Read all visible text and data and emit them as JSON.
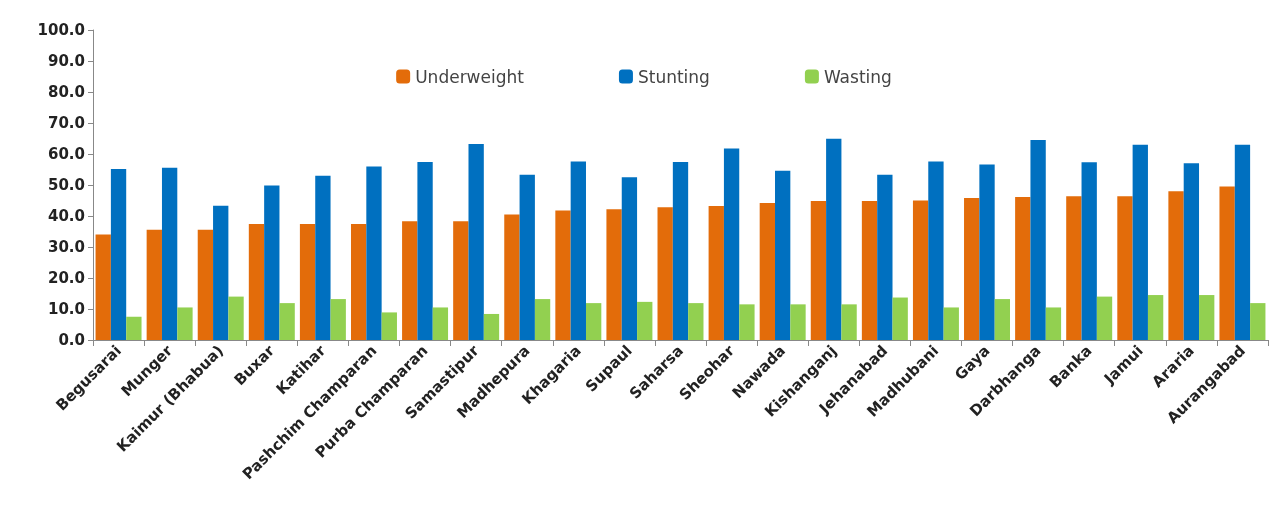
{
  "chart_data": {
    "type": "bar",
    "categories": [
      "Begusarai",
      "Munger",
      "Kaimur (Bhabua)",
      "Buxar",
      "Katihar",
      "Pashchim Champaran",
      "Purba Champaran",
      "Samastipur",
      "Madhepura",
      "Khagaria",
      "Supaul",
      "Saharsa",
      "Sheohar",
      "Nawada",
      "Kishanganj",
      "Jehanabad",
      "Madhubani",
      "Gaya",
      "Darbhanga",
      "Banka",
      "Jamui",
      "Araria",
      "Aurangabad"
    ],
    "series": [
      {
        "name": "Underweight",
        "color": "#e36c0a",
        "values": [
          34.0,
          35.6,
          35.6,
          37.4,
          37.4,
          37.4,
          38.3,
          38.3,
          40.5,
          41.8,
          42.2,
          42.8,
          43.2,
          44.2,
          44.8,
          44.8,
          45.0,
          45.8,
          46.1,
          46.4,
          46.4,
          48.0,
          49.5
        ]
      },
      {
        "name": "Stunting",
        "color": "#0070c0",
        "values": [
          55.2,
          55.6,
          43.3,
          49.8,
          53.0,
          56.0,
          57.4,
          63.2,
          53.3,
          57.6,
          52.5,
          57.4,
          61.8,
          54.6,
          64.9,
          53.3,
          57.6,
          56.6,
          64.5,
          57.3,
          63.0,
          57.0,
          63.0
        ]
      },
      {
        "name": "Wasting",
        "color": "#92d050",
        "values": [
          7.5,
          10.5,
          14.0,
          11.9,
          13.2,
          8.9,
          10.5,
          8.4,
          13.2,
          11.9,
          12.3,
          11.9,
          11.5,
          11.5,
          11.5,
          13.7,
          10.5,
          13.2,
          10.5,
          14.0,
          14.5,
          14.5,
          11.9
        ]
      }
    ],
    "ylim": [
      0,
      100
    ],
    "yticks": [
      {
        "value": 0,
        "label": "0.0"
      },
      {
        "value": 10,
        "label": "10.0"
      },
      {
        "value": 20,
        "label": "20.0"
      },
      {
        "value": 30,
        "label": "30.0"
      },
      {
        "value": 40,
        "label": "40.0"
      },
      {
        "value": 50,
        "label": "50.0"
      },
      {
        "value": 60,
        "label": "60.0"
      },
      {
        "value": 70,
        "label": "70.0"
      },
      {
        "value": 80,
        "label": "80.0"
      },
      {
        "value": 90,
        "label": "90.0"
      },
      {
        "value": 100,
        "label": "100.0"
      }
    ],
    "grid": false,
    "legend": "top"
  }
}
